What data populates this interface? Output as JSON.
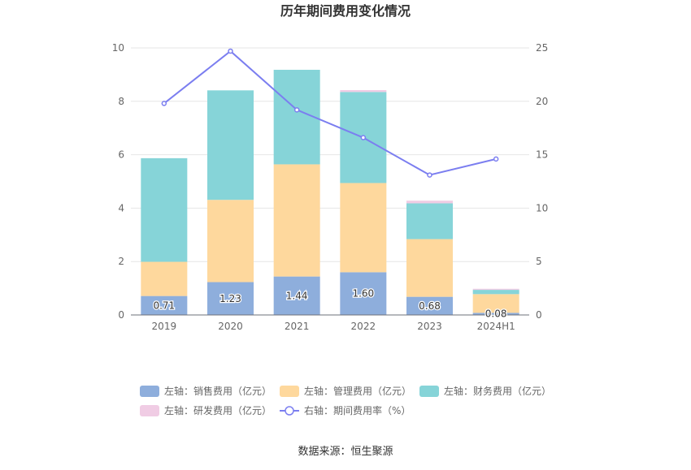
{
  "chart_data": {
    "type": "bar",
    "title": "历年期间费用变化情况",
    "categories": [
      "2019",
      "2020",
      "2021",
      "2022",
      "2023",
      "2024H1"
    ],
    "left_axis": {
      "min": 0,
      "max": 10,
      "ticks": [
        "0",
        "2",
        "4",
        "6",
        "8",
        "10"
      ]
    },
    "right_axis": {
      "min": 0,
      "max": 25,
      "ticks": [
        "0",
        "5",
        "10",
        "15",
        "20",
        "25"
      ]
    },
    "grid": true,
    "legend_position": "bottom",
    "series": [
      {
        "name": "左轴：销售费用（亿元）",
        "type": "bar",
        "axis": "left",
        "color": "#8eaedc",
        "values": [
          0.71,
          1.23,
          1.44,
          1.6,
          0.68,
          0.08
        ],
        "data_labels": [
          "0.71",
          "1.23",
          "1.44",
          "1.60",
          "0.68",
          "0.08"
        ]
      },
      {
        "name": "左轴：管理费用（亿元）",
        "type": "bar",
        "axis": "left",
        "color": "#fed89d",
        "values": [
          1.28,
          3.08,
          4.2,
          3.34,
          2.16,
          0.7
        ]
      },
      {
        "name": "左轴：财务费用（亿元）",
        "type": "bar",
        "axis": "left",
        "color": "#86d4d8",
        "values": [
          3.88,
          4.1,
          3.54,
          3.41,
          1.34,
          0.16
        ]
      },
      {
        "name": "左轴：研发费用（亿元）",
        "type": "bar",
        "axis": "left",
        "color": "#f0cce4",
        "values": [
          0.0,
          0.0,
          0.0,
          0.07,
          0.1,
          0.04
        ]
      },
      {
        "name": "右轴：期间费用率（%）",
        "type": "line",
        "axis": "right",
        "color": "#7b7ef0",
        "values": [
          19.8,
          24.7,
          19.2,
          16.6,
          13.1,
          14.6
        ]
      }
    ]
  },
  "footer": {
    "source": "数据来源：恒生聚源"
  }
}
